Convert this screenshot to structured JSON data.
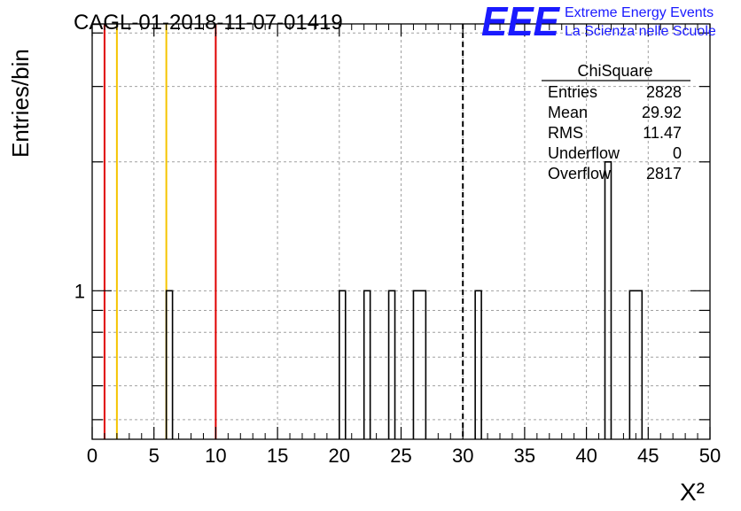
{
  "header": {
    "title": "CAGL-01-2018-11-07-01419",
    "logo_text": "EEE",
    "logo_line1": "Extreme Energy Events",
    "logo_line2": "La Scienza nelle Scuole"
  },
  "colors": {
    "logo_blue": "#1a1aff",
    "histogram": "#000000",
    "red_marker": "#e00000",
    "yellow_marker": "#f5c400",
    "grid": "#a0a0a0"
  },
  "chart_data": {
    "type": "bar",
    "histogram": true,
    "title": "CAGL-01-2018-11-07-01419",
    "xlabel": "X²",
    "ylabel": "Entries/bin",
    "xlim": [
      0,
      50
    ],
    "ylog": true,
    "ylim": [
      0.45,
      4.2
    ],
    "bin_width": 1,
    "x_ticks": [
      "0",
      "5",
      "10",
      "15",
      "20",
      "25",
      "30",
      "35",
      "40",
      "45",
      "50"
    ],
    "y_tick_labels": [
      {
        "value": 1,
        "label": "1"
      }
    ],
    "grid": true,
    "bins": [
      {
        "x0": 6,
        "x1": 6.5,
        "count": 1
      },
      {
        "x0": 20,
        "x1": 20.5,
        "count": 1
      },
      {
        "x0": 22,
        "x1": 22.5,
        "count": 1
      },
      {
        "x0": 24,
        "x1": 24.5,
        "count": 1
      },
      {
        "x0": 26,
        "x1": 27,
        "count": 1
      },
      {
        "x0": 31,
        "x1": 31.5,
        "count": 1
      },
      {
        "x0": 41.5,
        "x1": 42,
        "count": 2
      },
      {
        "x0": 43.5,
        "x1": 44.5,
        "count": 1
      }
    ],
    "vertical_markers": [
      {
        "x": 1,
        "color": "#e00000",
        "style": "solid"
      },
      {
        "x": 2,
        "color": "#f5c400",
        "style": "solid"
      },
      {
        "x": 6,
        "color": "#f5c400",
        "style": "solid"
      },
      {
        "x": 10,
        "color": "#e00000",
        "style": "solid"
      },
      {
        "x": 30,
        "color": "#000000",
        "style": "dashed"
      }
    ],
    "stats_box": {
      "title": "ChiSquare",
      "rows": [
        {
          "label": "Entries",
          "value": "2828"
        },
        {
          "label": "Mean",
          "value": "29.92"
        },
        {
          "label": "RMS",
          "value": "11.47"
        },
        {
          "label": "Underflow",
          "value": "0"
        },
        {
          "label": "Overflow",
          "value": "2817"
        }
      ]
    }
  }
}
